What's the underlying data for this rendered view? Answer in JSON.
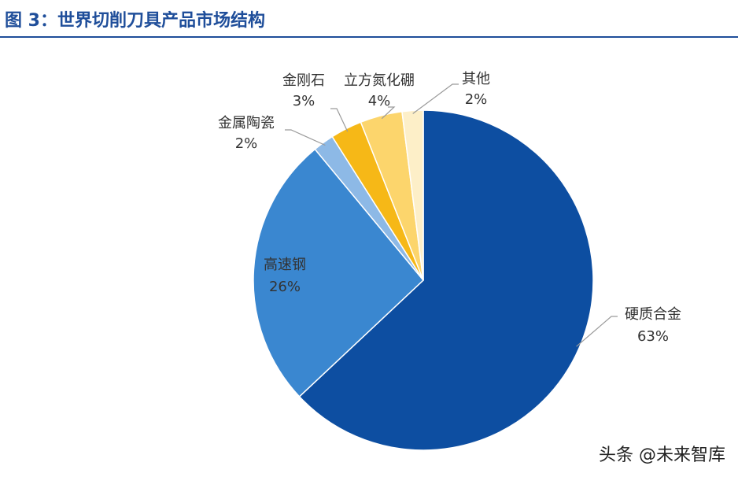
{
  "header": {
    "title": "图 3：世界切削刀具产品市场结构"
  },
  "watermark": "头条 @未来智库",
  "chart_data": {
    "type": "pie",
    "title": "",
    "slices": [
      {
        "name": "硬质合金",
        "value": 63,
        "label": "63%",
        "color": "#0d4ea1"
      },
      {
        "name": "高速钢",
        "value": 26,
        "label": "26%",
        "color": "#3a87d0"
      },
      {
        "name": "金属陶瓷",
        "value": 2,
        "label": "2%",
        "color": "#8db9e6"
      },
      {
        "name": "金刚石",
        "value": 3,
        "label": "3%",
        "color": "#f6b817"
      },
      {
        "name": "立方氮化硼",
        "value": 4,
        "label": "4%",
        "color": "#fcd56c"
      },
      {
        "name": "其他",
        "value": 2,
        "label": "2%",
        "color": "#fdefc8"
      }
    ]
  }
}
